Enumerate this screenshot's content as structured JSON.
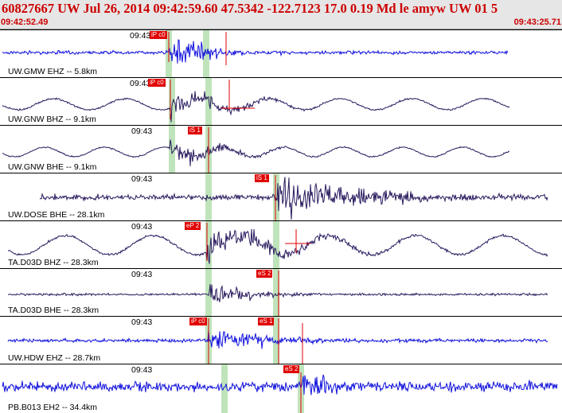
{
  "header": {
    "title": "60827667 UW Jul 26, 2014 09:42:59.60    47.5342 -122.7123 17.0 0.19 Md le amyw UW 01    5",
    "time_start": "09:42:52.49",
    "time_end": "09:43:25.71"
  },
  "colors": {
    "header_bg": "#e6e6e6",
    "header_text": "#cc0000",
    "vertical_trace": "#2a1a5e",
    "blue_trace": "#1111dd",
    "pick_box": "#e00000",
    "window_band": "#bfe4bb"
  },
  "traces": [
    {
      "station": "UW.GMW EHZ -- 5.8km",
      "tick": "09:43",
      "pick": "iP c0",
      "color": "blue"
    },
    {
      "station": "UW.GNW BHZ -- 9.1km",
      "tick": "09:43",
      "pick": "iP c0",
      "color": "dark"
    },
    {
      "station": "UW.GNW BHE -- 9.1km",
      "tick": "09:43",
      "pick": "iS 1",
      "color": "dark"
    },
    {
      "station": "UW.DOSE BHE -- 28.1km",
      "tick": "09:43",
      "pick": "iS 1",
      "color": "dark"
    },
    {
      "station": "TA.D03D BHZ -- 28.3km",
      "tick": "09:43",
      "pick": "eP 2",
      "color": "dark"
    },
    {
      "station": "TA.D03D BHE -- 28.3km",
      "tick": "09:43",
      "pick": "eS 2",
      "color": "dark"
    },
    {
      "station": "UW.HDW EHZ -- 28.7km",
      "tick": "09:43",
      "pick": "iP c0",
      "pick2": "eS 1",
      "color": "blue"
    },
    {
      "station": "PB.B013 EH2 -- 34.4km",
      "tick": "09:43",
      "pick": "eS 2",
      "color": "blue"
    }
  ]
}
